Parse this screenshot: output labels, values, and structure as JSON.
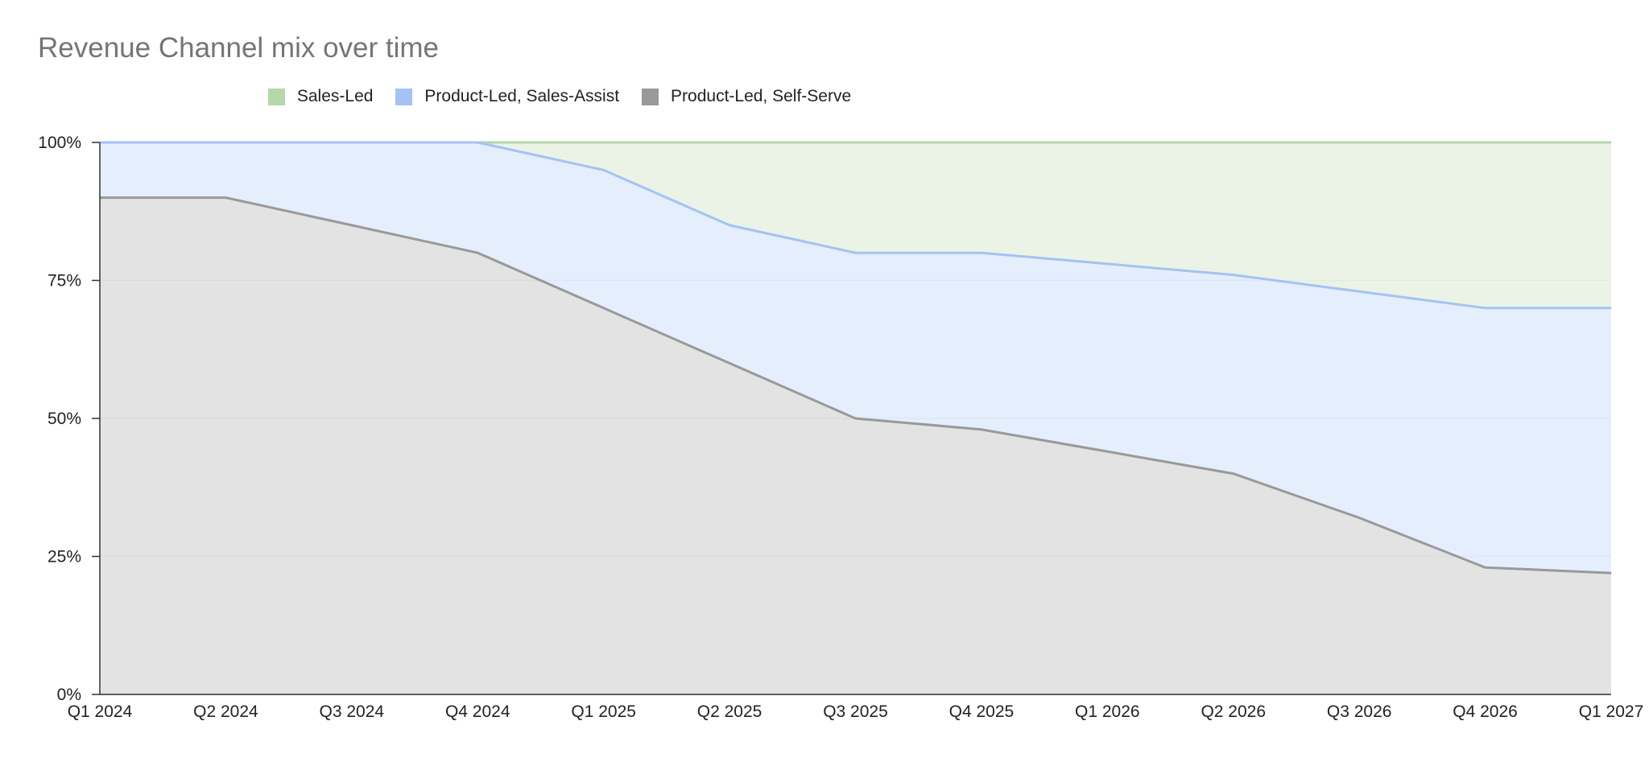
{
  "chart_data": {
    "type": "area",
    "stacked": true,
    "percent": true,
    "title": "Revenue Channel mix over time",
    "categories": [
      "Q1 2024",
      "Q2 2024",
      "Q3 2024",
      "Q4 2024",
      "Q1 2025",
      "Q2 2025",
      "Q3 2025",
      "Q4 2025",
      "Q1 2026",
      "Q2 2026",
      "Q3 2026",
      "Q4 2026",
      "Q1 2027"
    ],
    "y_ticks": [
      "0%",
      "25%",
      "50%",
      "75%",
      "100%"
    ],
    "ylim": [
      0,
      100
    ],
    "grid": true,
    "legend_position": "top-center",
    "series": [
      {
        "name": "Product-Led, Self-Serve",
        "color": "#999999",
        "fill": "#dedede",
        "values": [
          90,
          90,
          85,
          80,
          70,
          60,
          50,
          48,
          44,
          40,
          32,
          23,
          22
        ]
      },
      {
        "name": "Product-Led, Sales-Assist",
        "color": "#a4c2f4",
        "fill": "#e1ebfb",
        "values": [
          10,
          10,
          15,
          20,
          25,
          25,
          30,
          32,
          34,
          36,
          41,
          47,
          48
        ]
      },
      {
        "name": "Sales-Led",
        "color": "#b6d7a8",
        "fill": "#e6f1e2",
        "values": [
          0,
          0,
          0,
          0,
          5,
          15,
          20,
          20,
          22,
          24,
          27,
          30,
          30
        ]
      }
    ]
  },
  "legend": [
    {
      "label": "Sales-Led",
      "color": "#b6d7a8"
    },
    {
      "label": "Product-Led, Sales-Assist",
      "color": "#a4c2f4"
    },
    {
      "label": "Product-Led, Self-Serve",
      "color": "#999999"
    }
  ]
}
